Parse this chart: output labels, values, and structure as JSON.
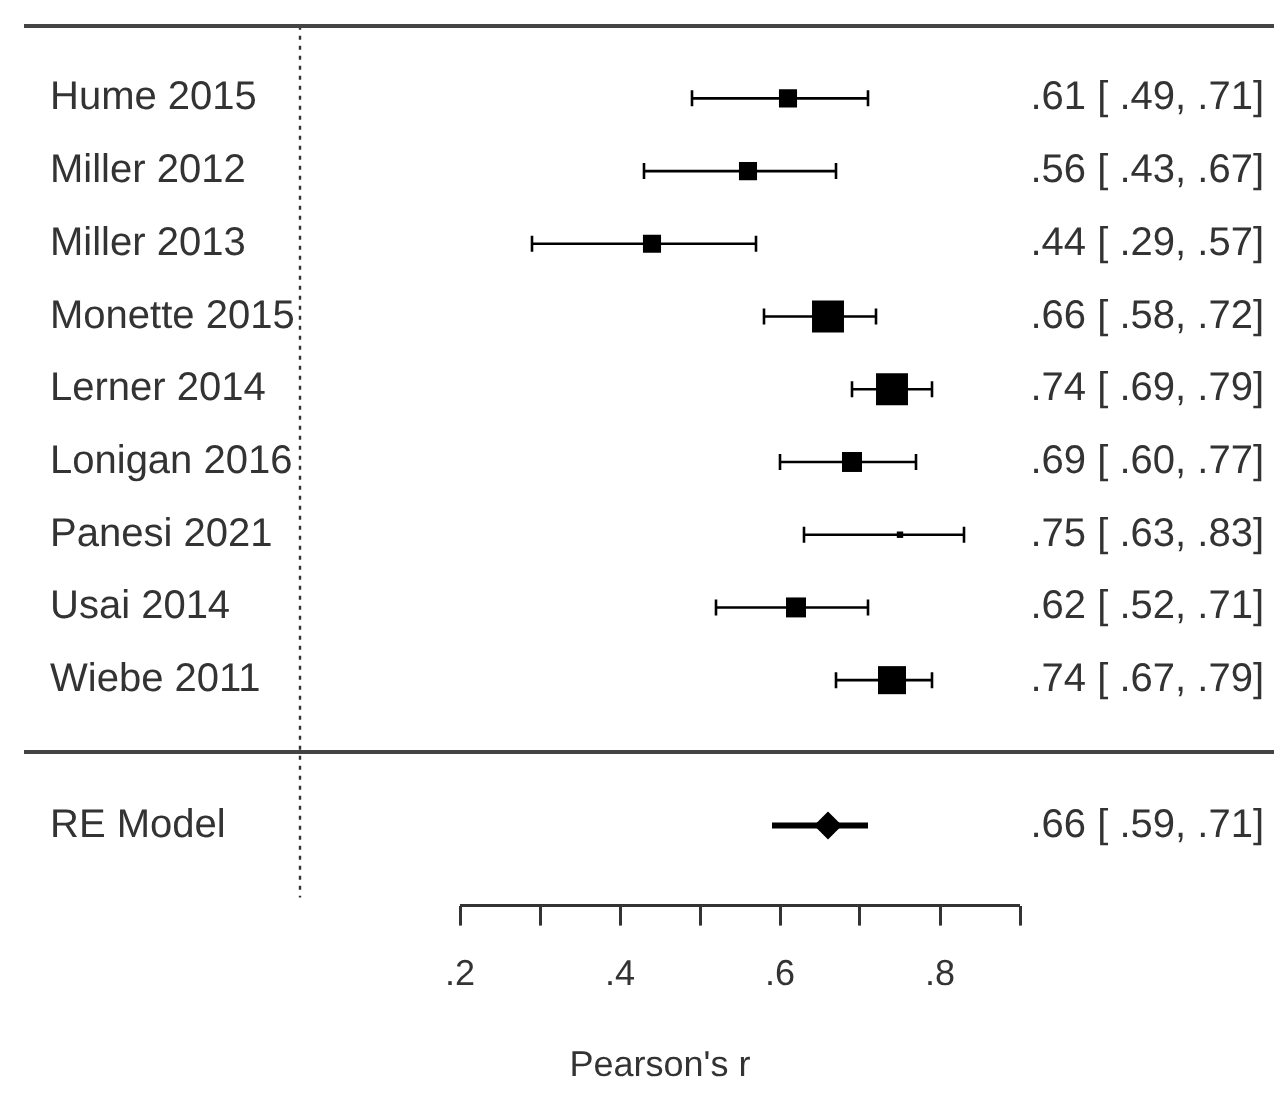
{
  "chart_data": {
    "type": "scatter",
    "orientation": "horizontal",
    "xlabel": "Pearson's r",
    "categories": [
      "Hume 2015",
      "Miller 2012",
      "Miller 2013",
      "Monette 2015",
      "Lerner 2014",
      "Lonigan 2016",
      "Panesi 2021",
      "Usai 2014",
      "Wiebe 2011",
      null,
      "RE Model"
    ],
    "xlim": [
      0,
      0.9
    ],
    "xticks": [
      {
        "value": 0.2,
        "label": ".2"
      },
      {
        "value": 0.3,
        "label": null
      },
      {
        "value": 0.4,
        "label": ".4"
      },
      {
        "value": 0.5,
        "label": null
      },
      {
        "value": 0.6,
        "label": ".6"
      },
      {
        "value": 0.7,
        "label": null
      },
      {
        "value": 0.8,
        "label": ".8"
      },
      {
        "value": 0.9,
        "label": null
      }
    ],
    "series": [
      {
        "type": "bubble",
        "marker": "square",
        "color": "#000000",
        "values": [
          0.61,
          0.56,
          0.44,
          0.66,
          0.74,
          0.69,
          0.75,
          0.62,
          0.74,
          null,
          null
        ],
        "sizes": [
          0.32,
          0.32,
          0.32,
          1,
          1,
          0.39,
          0.04,
          0.39,
          0.77,
          null,
          null
        ],
        "errors": [
          [
            0.49,
            0.71
          ],
          [
            0.43,
            0.67
          ],
          [
            0.29,
            0.57
          ],
          [
            0.58,
            0.72
          ],
          [
            0.69,
            0.79
          ],
          [
            0.6,
            0.77
          ],
          [
            0.63,
            0.83
          ],
          [
            0.52,
            0.71
          ],
          [
            0.67,
            0.79
          ],
          null,
          null
        ],
        "value_labels": [
          ".61 [ .49, .71]",
          ".56 [ .43, .67]",
          ".44 [ .29, .57]",
          ".66 [ .58, .72]",
          ".74 [ .69, .79]",
          ".69 [ .60, .77]",
          ".75 [ .63, .83]",
          ".62 [ .52, .71]",
          ".74 [ .67, .79]",
          null,
          null
        ]
      },
      {
        "marker": "diamond",
        "color": "#000000",
        "values": [
          null,
          null,
          null,
          null,
          null,
          null,
          null,
          null,
          null,
          null,
          0.66
        ],
        "errors": [
          null,
          null,
          null,
          null,
          null,
          null,
          null,
          null,
          null,
          null,
          [
            0.59,
            0.71
          ]
        ]
      }
    ],
    "annotations": [
      ".66 [ .59, .71]"
    ],
    "ref_lines": [
      {
        "axis": "x",
        "value": 0,
        "line_style": "dotted"
      }
    ],
    "grid": false,
    "legend": false
  }
}
